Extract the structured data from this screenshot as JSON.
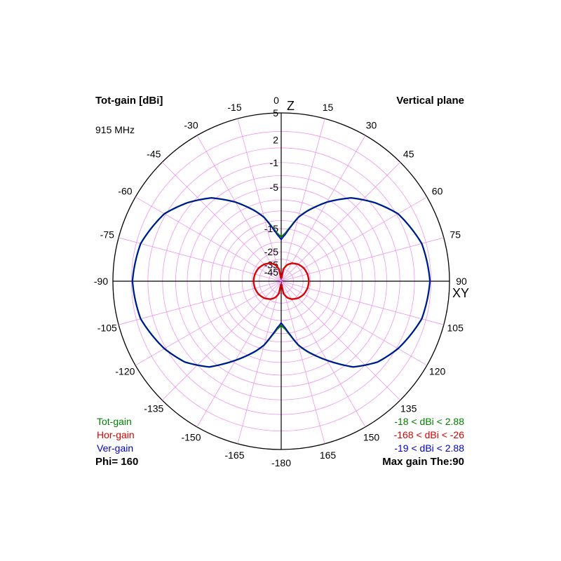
{
  "header": {
    "title": "Tot-gain [dBi]",
    "frequency": "915 MHz",
    "plane": "Vertical plane"
  },
  "footer": {
    "phi": "Phi= 160",
    "max_gain": "Max gain The:90"
  },
  "legend": [
    {
      "name": "Tot-gain",
      "color": "#008000",
      "range": "-18 < dBi < 2.88"
    },
    {
      "name": "Hor-gain",
      "color": "#dd0000",
      "range": "-168 < dBi < -26"
    },
    {
      "name": "Ver-gain",
      "color": "#0000cc",
      "range": "-19 < dBi < 2.88"
    }
  ],
  "axes": {
    "z_label": "Z",
    "xy_label": "XY"
  },
  "colors": {
    "tot": "#008000",
    "hor": "#dd0000",
    "ver": "#0000cc",
    "grid": "#ee88ee",
    "axis": "#000000"
  },
  "chart_data": {
    "type": "polar",
    "title": "Tot-gain [dBi]",
    "subtitle": "915 MHz",
    "angle_ticks": [
      "0",
      "15",
      "30",
      "45",
      "60",
      "75",
      "90",
      "105",
      "120",
      "135",
      "150",
      "165",
      "-180",
      "-165",
      "-150",
      "-135",
      "-120",
      "-105",
      "-90",
      "-75",
      "-60",
      "-45",
      "-30",
      "-15"
    ],
    "radial_ticks": [
      "5",
      "2",
      "-1",
      "-5",
      "-15",
      "-25",
      "-35",
      "-45"
    ],
    "series": [
      {
        "name": "Tot-gain",
        "theta_deg": [
          0,
          5,
          10,
          15,
          20,
          30,
          40,
          50,
          60,
          75,
          90,
          105,
          120,
          130,
          140,
          150,
          160,
          165,
          170,
          175,
          180
        ],
        "gain_dbi": [
          -18,
          -16.5,
          -14,
          -11,
          -9,
          -5.5,
          -2.5,
          -0.5,
          1.2,
          2.5,
          2.88,
          2.5,
          1.2,
          0,
          -2,
          -5.5,
          -9,
          -11,
          -14,
          -16.5,
          -18
        ]
      },
      {
        "name": "Hor-gain",
        "theta_deg": [
          0,
          10,
          20,
          30,
          45,
          60,
          75,
          90,
          105,
          120,
          135,
          150,
          160,
          170,
          180
        ],
        "gain_dbi": [
          -168,
          -40,
          -34,
          -31,
          -28.5,
          -27,
          -26.3,
          -26,
          -26.3,
          -27,
          -28.5,
          -31,
          -34,
          -40,
          -168
        ]
      },
      {
        "name": "Ver-gain",
        "theta_deg": [
          0,
          5,
          10,
          15,
          20,
          30,
          40,
          50,
          60,
          75,
          90,
          105,
          120,
          130,
          140,
          150,
          160,
          165,
          170,
          175,
          180
        ],
        "gain_dbi": [
          -19,
          -17,
          -14.2,
          -11.1,
          -9.1,
          -5.5,
          -2.5,
          -0.5,
          1.2,
          2.5,
          2.88,
          2.5,
          1.2,
          0,
          -2,
          -5.5,
          -9.1,
          -11.1,
          -14.2,
          -17,
          -19
        ]
      }
    ]
  }
}
